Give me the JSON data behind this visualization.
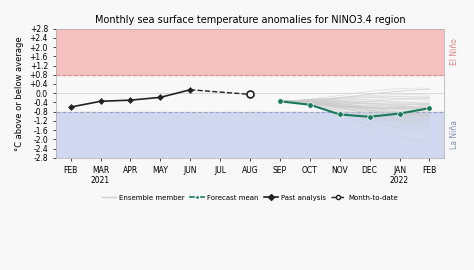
{
  "title": "Monthly sea surface temperature anomalies for NINO3.4 region",
  "ylabel": "°C above or below average",
  "ylim": [
    -2.8,
    2.8
  ],
  "yticks": [
    -2.8,
    -2.4,
    -2.0,
    -1.6,
    -1.2,
    -0.8,
    -0.4,
    0.0,
    0.4,
    0.8,
    1.2,
    1.6,
    2.0,
    2.4,
    2.8
  ],
  "ytick_labels": [
    "-2.8",
    "-2.4",
    "-2.0",
    "-1.6",
    "-1.2",
    "-0.8",
    "-0.4",
    "0.0",
    "+0.4",
    "+0.8",
    "+1.2",
    "+1.6",
    "+2.0",
    "+2.4",
    "+2.8"
  ],
  "xtick_labels": [
    "FEB",
    "MAR\n2021",
    "APR",
    "MAY",
    "JUN",
    "JUL",
    "AUG",
    "SEP",
    "OCT",
    "NOV",
    "DEC",
    "JAN\n2022",
    "FEB"
  ],
  "el_nino_threshold": 0.8,
  "la_nina_threshold": -0.8,
  "el_nino_color": "#f5c0c0",
  "la_nina_color": "#d0d8f0",
  "el_nino_label_color": "#e08080",
  "la_nina_label_color": "#8090c0",
  "threshold_line_color": "#d09090",
  "la_nina_threshold_line_color": "#a0a0c0",
  "past_analysis_x": [
    0,
    1,
    2,
    3,
    4,
    6
  ],
  "past_analysis_y": [
    -0.6,
    -0.35,
    -0.3,
    -0.18,
    0.15,
    -0.05
  ],
  "forecast_mean_x": [
    7,
    8,
    9,
    10,
    11,
    12
  ],
  "forecast_mean_y": [
    -0.35,
    -0.5,
    -0.92,
    -1.02,
    -0.88,
    -0.65
  ],
  "forecast_mean_color": "#1a7a5e",
  "past_analysis_color": "#222222",
  "ensemble_color": "#cccccc",
  "background_color": "#f8f8f8",
  "n_ensemble": 50
}
